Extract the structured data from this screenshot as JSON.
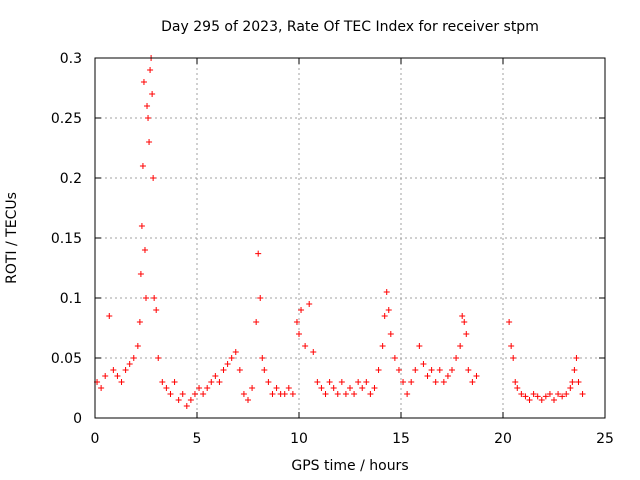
{
  "chart_data": {
    "type": "scatter",
    "title": "Day 295 of 2023, Rate Of TEC Index for receiver stpm",
    "xlabel": "GPS time / hours",
    "ylabel": "ROTI / TECUs",
    "xlim": [
      0,
      25
    ],
    "ylim": [
      0,
      0.3
    ],
    "x_ticks": [
      "0",
      "5",
      "10",
      "15",
      "20",
      "25"
    ],
    "y_ticks": [
      "0",
      "0.05",
      "0.1",
      "0.15",
      "0.2",
      "0.25",
      "0.3"
    ],
    "grid": true,
    "grid_style": "dotted",
    "marker": "plus",
    "series_color": "#ff0000",
    "series": [
      {
        "x": [
          0.1,
          0.3,
          0.5,
          0.7,
          0.9,
          1.1,
          1.3,
          1.5,
          1.7,
          1.9,
          2.1,
          2.2,
          2.25,
          2.3,
          2.35,
          2.4,
          2.45,
          2.5,
          2.55,
          2.6,
          2.65,
          2.7,
          2.75,
          2.8,
          2.85,
          2.9,
          3.0,
          3.1,
          3.3,
          3.5,
          3.7,
          3.9,
          4.1,
          4.3,
          4.5,
          4.7,
          4.9,
          5.1,
          5.3,
          5.5,
          5.7,
          5.9,
          6.1,
          6.3,
          6.5,
          6.7,
          6.9,
          7.1,
          7.3,
          7.5,
          7.7,
          7.9,
          8.0,
          8.1,
          8.2,
          8.3,
          8.5,
          8.7,
          8.9,
          9.1,
          9.3,
          9.5,
          9.7,
          9.9,
          10.0,
          10.1,
          10.3,
          10.5,
          10.7,
          10.9,
          11.1,
          11.3,
          11.5,
          11.7,
          11.9,
          12.1,
          12.3,
          12.5,
          12.7,
          12.9,
          13.1,
          13.3,
          13.5,
          13.7,
          13.9,
          14.1,
          14.2,
          14.3,
          14.4,
          14.5,
          14.7,
          14.9,
          15.1,
          15.3,
          15.5,
          15.7,
          15.9,
          16.1,
          16.3,
          16.5,
          16.7,
          16.9,
          17.1,
          17.3,
          17.5,
          17.7,
          17.9,
          18.0,
          18.1,
          18.2,
          18.3,
          18.5,
          18.7,
          20.3,
          20.4,
          20.5,
          20.6,
          20.7,
          20.9,
          21.1,
          21.3,
          21.5,
          21.7,
          21.9,
          22.1,
          22.3,
          22.5,
          22.7,
          22.9,
          23.1,
          23.3,
          23.4,
          23.5,
          23.6,
          23.7,
          23.9
        ],
        "y": [
          0.03,
          0.025,
          0.035,
          0.085,
          0.04,
          0.035,
          0.03,
          0.04,
          0.045,
          0.05,
          0.06,
          0.08,
          0.12,
          0.16,
          0.21,
          0.28,
          0.14,
          0.1,
          0.26,
          0.25,
          0.23,
          0.29,
          0.3,
          0.27,
          0.2,
          0.1,
          0.09,
          0.05,
          0.03,
          0.025,
          0.02,
          0.03,
          0.015,
          0.02,
          0.01,
          0.015,
          0.02,
          0.025,
          0.02,
          0.025,
          0.03,
          0.035,
          0.03,
          0.04,
          0.045,
          0.05,
          0.055,
          0.04,
          0.02,
          0.015,
          0.025,
          0.08,
          0.137,
          0.1,
          0.05,
          0.04,
          0.03,
          0.02,
          0.025,
          0.02,
          0.02,
          0.025,
          0.02,
          0.08,
          0.07,
          0.09,
          0.06,
          0.095,
          0.055,
          0.03,
          0.025,
          0.02,
          0.03,
          0.025,
          0.02,
          0.03,
          0.02,
          0.025,
          0.02,
          0.03,
          0.025,
          0.03,
          0.02,
          0.025,
          0.04,
          0.06,
          0.085,
          0.105,
          0.09,
          0.07,
          0.05,
          0.04,
          0.03,
          0.02,
          0.03,
          0.04,
          0.06,
          0.045,
          0.035,
          0.04,
          0.03,
          0.04,
          0.03,
          0.035,
          0.04,
          0.05,
          0.06,
          0.085,
          0.08,
          0.07,
          0.04,
          0.03,
          0.035,
          0.08,
          0.06,
          0.05,
          0.03,
          0.025,
          0.02,
          0.018,
          0.015,
          0.02,
          0.018,
          0.015,
          0.018,
          0.02,
          0.015,
          0.02,
          0.018,
          0.02,
          0.025,
          0.03,
          0.04,
          0.05,
          0.03,
          0.02
        ]
      }
    ]
  }
}
